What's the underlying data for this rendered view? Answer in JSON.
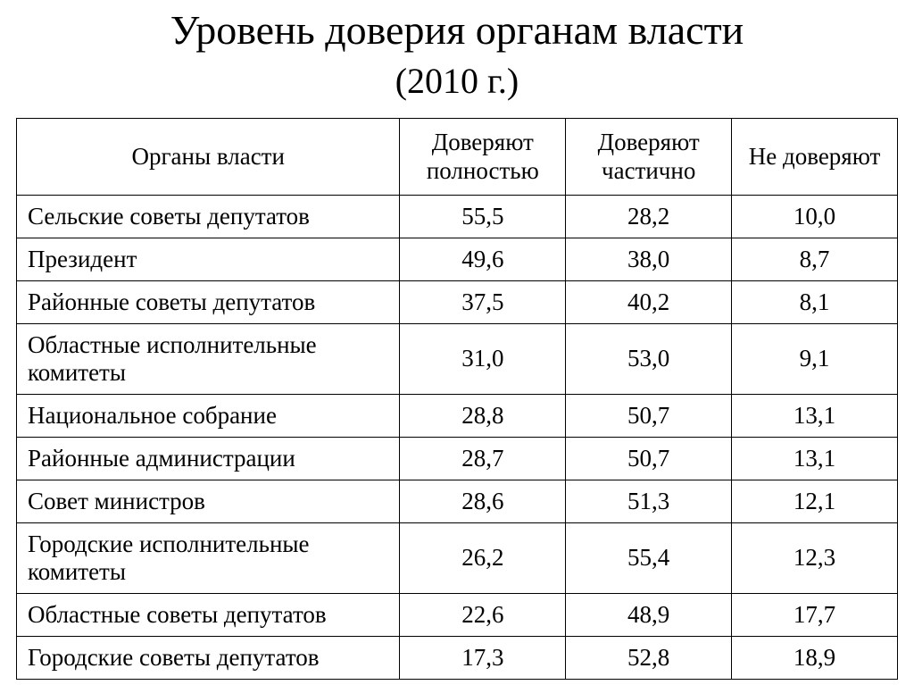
{
  "title": "Уровень доверия органам власти",
  "subtitle": "(2010 г.)",
  "table": {
    "type": "table",
    "background_color": "#ffffff",
    "border_color": "#000000",
    "header_fontsize": 27,
    "cell_fontsize": 27,
    "columns": [
      {
        "key": "organ",
        "label": "Органы власти",
        "align": "left"
      },
      {
        "key": "full",
        "label": "Доверяют полностью",
        "align": "center"
      },
      {
        "key": "partial",
        "label": "Доверяют частично",
        "align": "center"
      },
      {
        "key": "no",
        "label": "Не доверяют",
        "align": "center"
      }
    ],
    "rows": [
      {
        "organ": "Сельские советы депутатов",
        "full": "55,5",
        "partial": "28,2",
        "no": "10,0"
      },
      {
        "organ": "Президент",
        "full": "49,6",
        "partial": "38,0",
        "no": "8,7"
      },
      {
        "organ": "Районные советы  депутатов",
        "full": "37,5",
        "partial": "40,2",
        "no": "8,1"
      },
      {
        "organ": "Областные исполнительные комитеты",
        "full": "31,0",
        "partial": "53,0",
        "no": "9,1"
      },
      {
        "organ": "Национальное собрание",
        "full": "28,8",
        "partial": "50,7",
        "no": "13,1"
      },
      {
        "organ": "Районные администрации",
        "full": "28,7",
        "partial": "50,7",
        "no": "13,1"
      },
      {
        "organ": "Совет министров",
        "full": "28,6",
        "partial": "51,3",
        "no": "12,1"
      },
      {
        "organ": "Городские исполнительные комитеты",
        "full": "26,2",
        "partial": "55,4",
        "no": "12,3"
      },
      {
        "organ": "Областные советы депутатов",
        "full": "22,6",
        "partial": "48,9",
        "no": "17,7"
      },
      {
        "organ": "Городские советы депутатов",
        "full": "17,3",
        "partial": "52,8",
        "no": "18,9"
      }
    ]
  }
}
